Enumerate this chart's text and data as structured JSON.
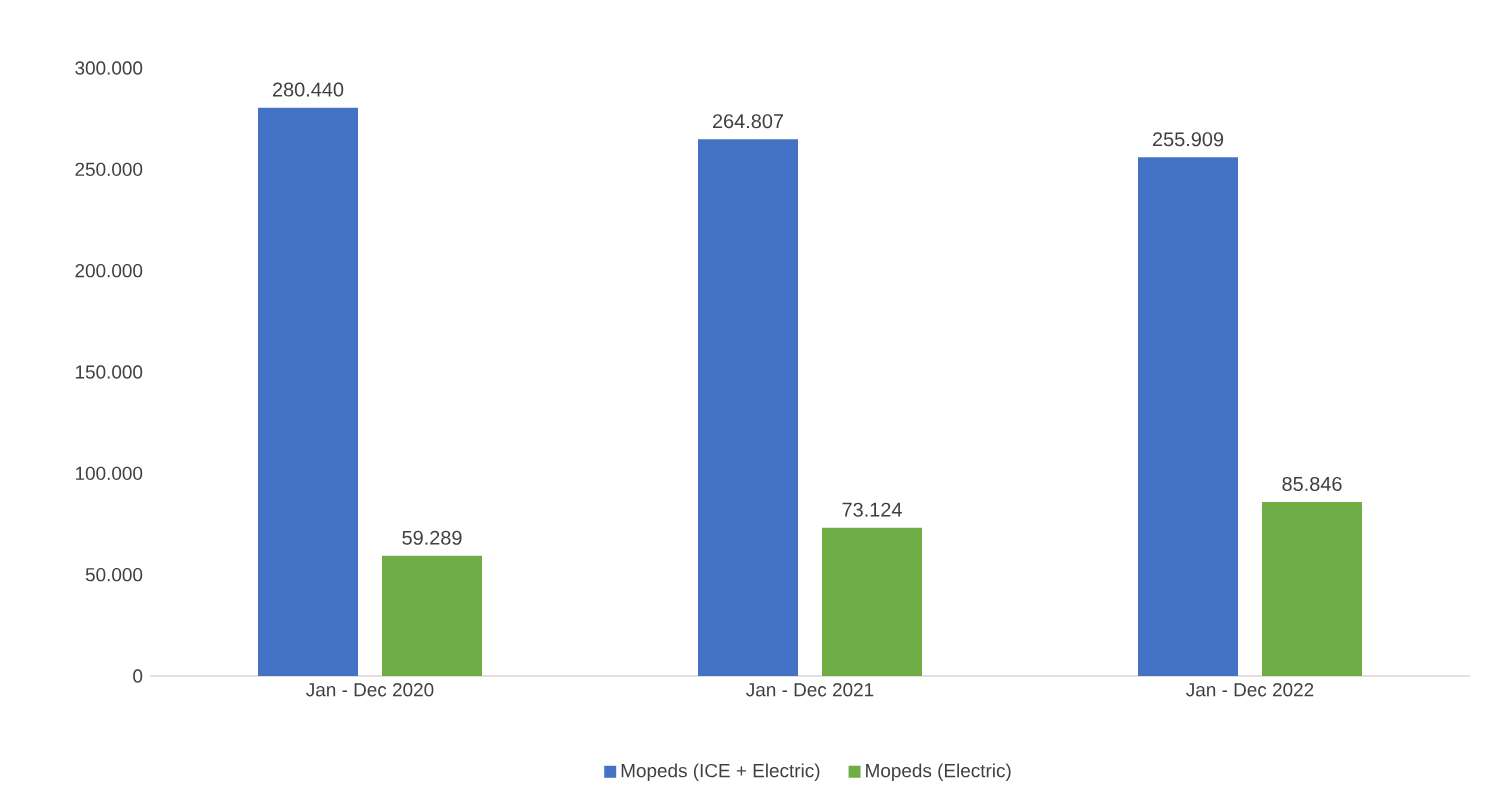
{
  "chart_data": {
    "type": "bar",
    "categories": [
      "Jan - Dec 2020",
      "Jan - Dec 2021",
      "Jan - Dec 2022"
    ],
    "series": [
      {
        "name": "Mopeds (ICE + Electric)",
        "color": "#4472c4",
        "values": [
          280440,
          264807,
          255909
        ],
        "value_labels": [
          "280.440",
          "264.807",
          "255.909"
        ]
      },
      {
        "name": "Mopeds (Electric)",
        "color": "#70ad47",
        "values": [
          59289,
          73124,
          85846
        ],
        "value_labels": [
          "59.289",
          "73.124",
          "85.846"
        ]
      }
    ],
    "ylim": [
      0,
      300000
    ],
    "yticks": [
      {
        "value": 0,
        "label": "0"
      },
      {
        "value": 50000,
        "label": "50.000"
      },
      {
        "value": 100000,
        "label": "100.000"
      },
      {
        "value": 150000,
        "label": "150.000"
      },
      {
        "value": 200000,
        "label": "200.000"
      },
      {
        "value": 250000,
        "label": "250.000"
      },
      {
        "value": 300000,
        "label": "300.000"
      }
    ],
    "legend": "bottom"
  }
}
